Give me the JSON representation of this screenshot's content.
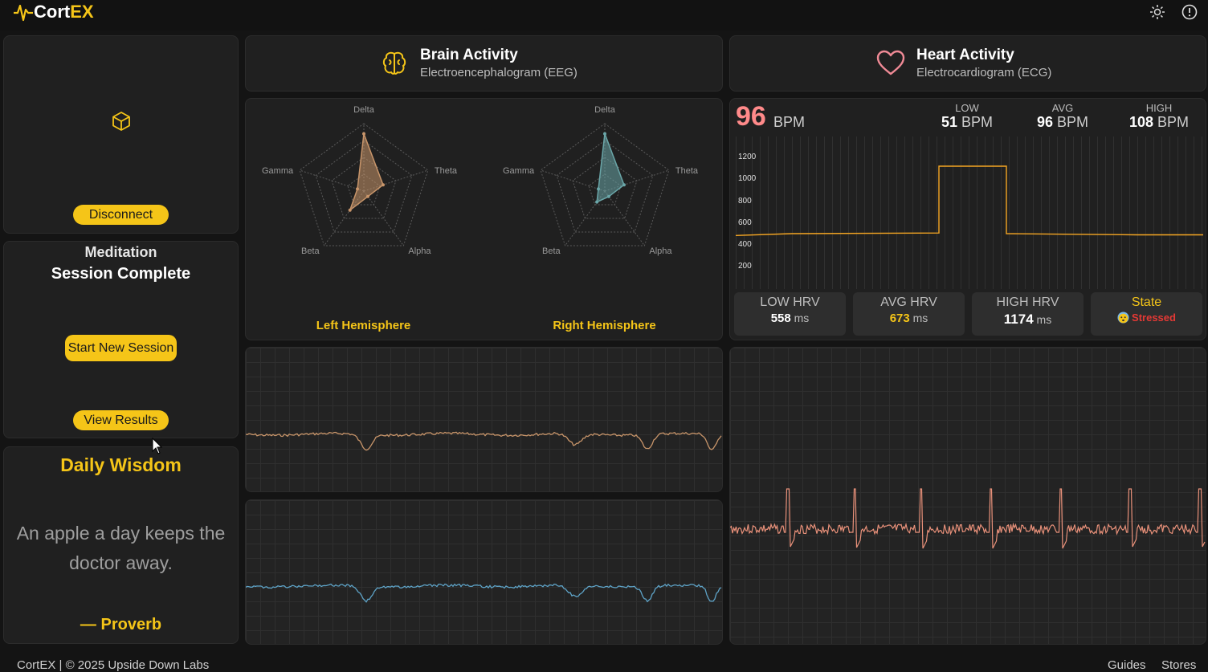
{
  "app": {
    "logo_prefix": "Cort",
    "logo_accent": "EX"
  },
  "header_icons": [
    "sun-icon",
    "info-icon"
  ],
  "device": {
    "icon": "cube-icon",
    "disconnect_label": "Disconnect"
  },
  "session": {
    "title": "Meditation",
    "status": "Session Complete",
    "start_label": "Start New Session",
    "results_label": "View Results"
  },
  "wisdom": {
    "title": "Daily Wisdom",
    "quote": "An apple a day keeps the doctor away.",
    "author": "— Proverb"
  },
  "eeg": {
    "title": "Brain Activity",
    "subtitle": "Electroencephalogram (EEG)",
    "bands": [
      "Delta",
      "Theta",
      "Alpha",
      "Beta",
      "Gamma"
    ],
    "left_label": "Left Hemisphere",
    "right_label": "Right Hemisphere",
    "left_values": [
      0.85,
      0.3,
      0.1,
      0.35,
      0.1
    ],
    "right_values": [
      0.85,
      0.3,
      0.1,
      0.2,
      0.1
    ],
    "left_color": "#c8956a",
    "right_color": "#6aa6a8"
  },
  "ecg": {
    "title": "Heart Activity",
    "subtitle": "Electrocardiogram (ECG)",
    "bpm_value": "96",
    "bpm_unit": "BPM",
    "low_label": "LOW",
    "low_value": "51",
    "low_unit": "BPM",
    "avg_label": "AVG",
    "avg_value": "96",
    "avg_unit": "BPM",
    "high_label": "HIGH",
    "high_value": "108",
    "high_unit": "BPM",
    "y_ticks": [
      "1200",
      "1000",
      "800",
      "600",
      "400",
      "200"
    ],
    "hrv": {
      "low_label": "LOW HRV",
      "low_value": "558",
      "low_unit": "ms",
      "avg_label": "AVG HRV",
      "avg_value": "673",
      "avg_unit": "ms",
      "high_label": "HIGH HRV",
      "high_value": "1174",
      "high_unit": "ms",
      "state_label": "State",
      "state_value": "Stressed"
    },
    "trace_color": "#e9917a"
  },
  "footer": {
    "copyright": "CortEX | © 2025 Upside Down Labs",
    "links": [
      "Guides",
      "Stores"
    ]
  },
  "colors": {
    "accent": "#f5c518",
    "stressed": "#e53935",
    "bpm": "#ff8a8a",
    "rr_line": "#f5a623"
  }
}
